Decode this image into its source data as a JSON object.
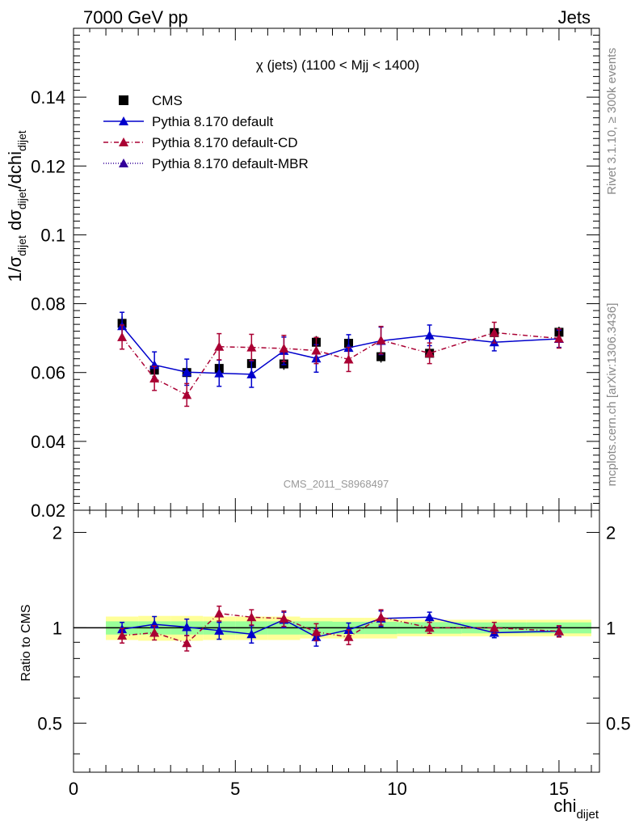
{
  "header": {
    "left": "7000 GeV pp",
    "right": "Jets"
  },
  "side_texts": {
    "rivet": "Rivet 3.1.10, ≥ 300k events",
    "mcplots": "mcplots.cern.ch [arXiv:1306.3436]"
  },
  "watermark": "CMS_2011_S8968497",
  "colors": {
    "cms": "#000000",
    "default": "#0000cc",
    "cd": "#aa0033",
    "mbr": "#330099",
    "band_inner": "#99ff99",
    "band_outer": "#ffff99"
  },
  "chart_data": [
    {
      "type": "scatter",
      "title": "χ (jets) (1100 < Mjj < 1400)",
      "ylabel": "1/σdijet dσdijet/dchidijet",
      "xlabel": "",
      "xlim": [
        0,
        16.25
      ],
      "ylim": [
        0.02,
        0.16
      ],
      "yticks": [
        "0.02",
        "0.04",
        "0.06",
        "0.08",
        "0.1",
        "0.12",
        "0.14"
      ],
      "legend_position": "top-left",
      "series": [
        {
          "name": "CMS",
          "marker": "square",
          "color": "#000000",
          "x": [
            1.5,
            2.5,
            3.5,
            4.5,
            5.5,
            6.5,
            7.5,
            8.5,
            9.5,
            11,
            13,
            15
          ],
          "y": [
            0.0743,
            0.0607,
            0.06,
            0.0612,
            0.0626,
            0.0625,
            0.0688,
            0.0685,
            0.0646,
            0.0656,
            0.0716,
            0.0717
          ],
          "yerr": [
            0.002,
            0.0018,
            0.0018,
            0.0018,
            0.0017,
            0.0017,
            0.0018,
            0.0017,
            0.0017,
            0.0017,
            0.0016,
            0.0016
          ]
        },
        {
          "name": "Pythia 8.170 default",
          "marker": "triangle",
          "line": "solid",
          "color": "#0000cc",
          "x": [
            1.5,
            2.5,
            3.5,
            4.5,
            5.5,
            6.5,
            7.5,
            8.5,
            9.5,
            11,
            13,
            15
          ],
          "y": [
            0.0735,
            0.0622,
            0.0601,
            0.0598,
            0.0595,
            0.0663,
            0.0641,
            0.0672,
            0.0692,
            0.0708,
            0.0688,
            0.0698
          ],
          "yerr": [
            0.004,
            0.0038,
            0.0038,
            0.0038,
            0.0038,
            0.004,
            0.004,
            0.0038,
            0.004,
            0.003,
            0.0025,
            0.0025
          ]
        },
        {
          "name": "Pythia 8.170 default-CD",
          "marker": "triangle",
          "line": "dashdot",
          "color": "#aa0033",
          "x": [
            1.5,
            2.5,
            3.5,
            4.5,
            5.5,
            6.5,
            7.5,
            8.5,
            9.5,
            11,
            13,
            15
          ],
          "y": [
            0.0703,
            0.0583,
            0.0535,
            0.0675,
            0.0673,
            0.067,
            0.0664,
            0.0638,
            0.0694,
            0.0656,
            0.0716,
            0.0699
          ],
          "yerr": [
            0.0035,
            0.0035,
            0.0033,
            0.0038,
            0.0038,
            0.0038,
            0.0038,
            0.0035,
            0.004,
            0.003,
            0.003,
            0.0028
          ]
        },
        {
          "name": "Pythia 8.170 default-MBR",
          "marker": "triangle",
          "line": "dotted",
          "color": "#330099",
          "x": [],
          "y": [],
          "yerr": []
        }
      ]
    },
    {
      "type": "scatter",
      "title": "",
      "ylabel": "Ratio to CMS",
      "xlabel": "chidijet",
      "xlim": [
        0,
        16.25
      ],
      "ylim": [
        0.35,
        2.35
      ],
      "log_y": true,
      "yticks": [
        "0.5",
        "1",
        "2"
      ],
      "xticks": [
        "0",
        "5",
        "10",
        "15"
      ],
      "bands": {
        "edges": [
          1,
          2,
          3,
          4,
          5,
          6,
          7,
          8,
          9,
          10,
          12,
          14,
          16
        ],
        "inner": [
          0.048,
          0.048,
          0.048,
          0.048,
          0.048,
          0.048,
          0.048,
          0.045,
          0.045,
          0.042,
          0.04,
          0.04
        ],
        "outer": [
          0.085,
          0.09,
          0.09,
          0.085,
          0.085,
          0.085,
          0.075,
          0.075,
          0.075,
          0.06,
          0.06,
          0.06
        ]
      },
      "series": [
        {
          "name": "Pythia 8.170 default",
          "color": "#0000cc",
          "x": [
            1.5,
            2.5,
            3.5,
            4.5,
            5.5,
            6.5,
            7.5,
            8.5,
            9.5,
            11,
            13,
            15
          ],
          "y": [
            0.99,
            1.025,
            1.005,
            0.98,
            0.955,
            1.06,
            0.935,
            0.985,
            1.07,
            1.08,
            0.965,
            0.975
          ],
          "yerr": [
            0.05,
            0.06,
            0.06,
            0.06,
            0.06,
            0.06,
            0.06,
            0.05,
            0.06,
            0.04,
            0.035,
            0.035
          ]
        },
        {
          "name": "Pythia 8.170 default-CD",
          "color": "#aa0033",
          "x": [
            1.5,
            2.5,
            3.5,
            4.5,
            5.5,
            6.5,
            7.5,
            8.5,
            9.5,
            11,
            13,
            15
          ],
          "y": [
            0.945,
            0.965,
            0.895,
            1.11,
            1.08,
            1.07,
            0.97,
            0.935,
            1.08,
            1.0,
            1.0,
            0.975
          ],
          "yerr": [
            0.05,
            0.05,
            0.05,
            0.06,
            0.06,
            0.06,
            0.06,
            0.05,
            0.06,
            0.04,
            0.04,
            0.04
          ]
        }
      ]
    }
  ]
}
